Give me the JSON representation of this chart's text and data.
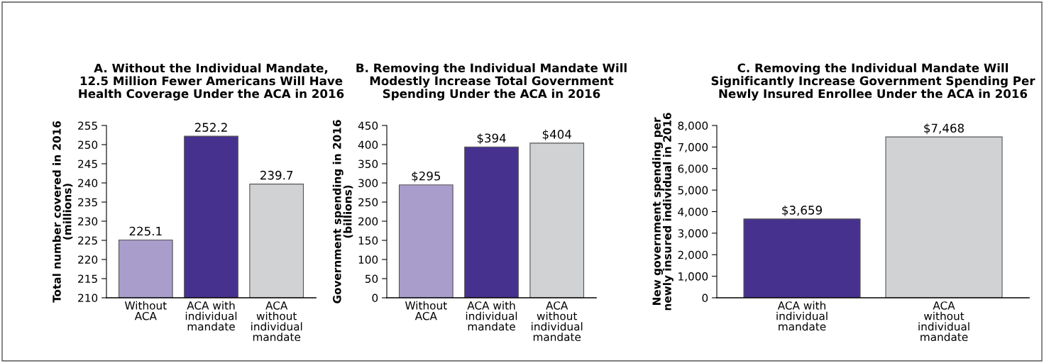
{
  "chart_data": [
    {
      "type": "bar",
      "title": "A. Without the Individual Mandate,\n12.5 Million Fewer Americans Will Have\nHealth Coverage Under the ACA in 2016",
      "ylabel": "Total number covered in 2016\n(millions)",
      "categories": [
        "Without\nACA",
        "ACA with\nindividual\nmandate",
        "ACA\nwithout\nindividual\nmandate"
      ],
      "values": [
        225.1,
        252.2,
        239.7
      ],
      "colors": [
        "#a89dcb",
        "#47318f",
        "#d1d2d4"
      ],
      "ylim": [
        210,
        255
      ],
      "yticks": [
        210,
        215,
        220,
        225,
        230,
        235,
        240,
        245,
        250,
        255
      ],
      "data_labels": true,
      "grid": false,
      "legend": false
    },
    {
      "type": "bar",
      "title": "B. Removing the Individual Mandate Will\nModestly Increase Total Government\nSpending Under the ACA in 2016",
      "ylabel": "Government spending in 2016\n(billions)",
      "categories": [
        "Without\nACA",
        "ACA with\nindividual\nmandate",
        "ACA\nwithout\nindividual\nmandate"
      ],
      "values": [
        295,
        394,
        404
      ],
      "value_labels": [
        "$295",
        "$394",
        "$404"
      ],
      "colors": [
        "#a89dcb",
        "#47318f",
        "#d1d2d4"
      ],
      "ylim": [
        0,
        450
      ],
      "yticks": [
        0,
        50,
        100,
        150,
        200,
        250,
        300,
        350,
        400,
        450
      ],
      "grid": false,
      "legend": false
    },
    {
      "type": "bar",
      "title": "C. Removing the Individual Mandate Will\nSignificantly Increase Government Spending Per\nNewly Insured Enrollee Under the ACA in 2016",
      "ylabel": "New government spending per\nnewly insured individual in 2016",
      "categories": [
        "ACA with\nindividual\nmandate",
        "ACA\nwithout\nindividual\nmandate"
      ],
      "values": [
        3659,
        7468
      ],
      "value_labels": [
        "$3,659",
        "$7,468"
      ],
      "colors": [
        "#47318f",
        "#d1d2d4"
      ],
      "ylim": [
        0,
        8000
      ],
      "yticks": [
        {
          "value": 0,
          "label": "0"
        },
        {
          "value": 1000,
          "label": "1,000"
        },
        {
          "value": 2000,
          "label": "2,000"
        },
        {
          "value": 3000,
          "label": "3,000"
        },
        {
          "value": 4000,
          "label": "4,000"
        },
        {
          "value": 5000,
          "label": "5,000"
        },
        {
          "value": 6000,
          "label": "6,000"
        },
        {
          "value": 7000,
          "label": "7,000"
        },
        {
          "value": 8000,
          "label": "8,000"
        }
      ],
      "grid": false,
      "legend": false
    }
  ]
}
